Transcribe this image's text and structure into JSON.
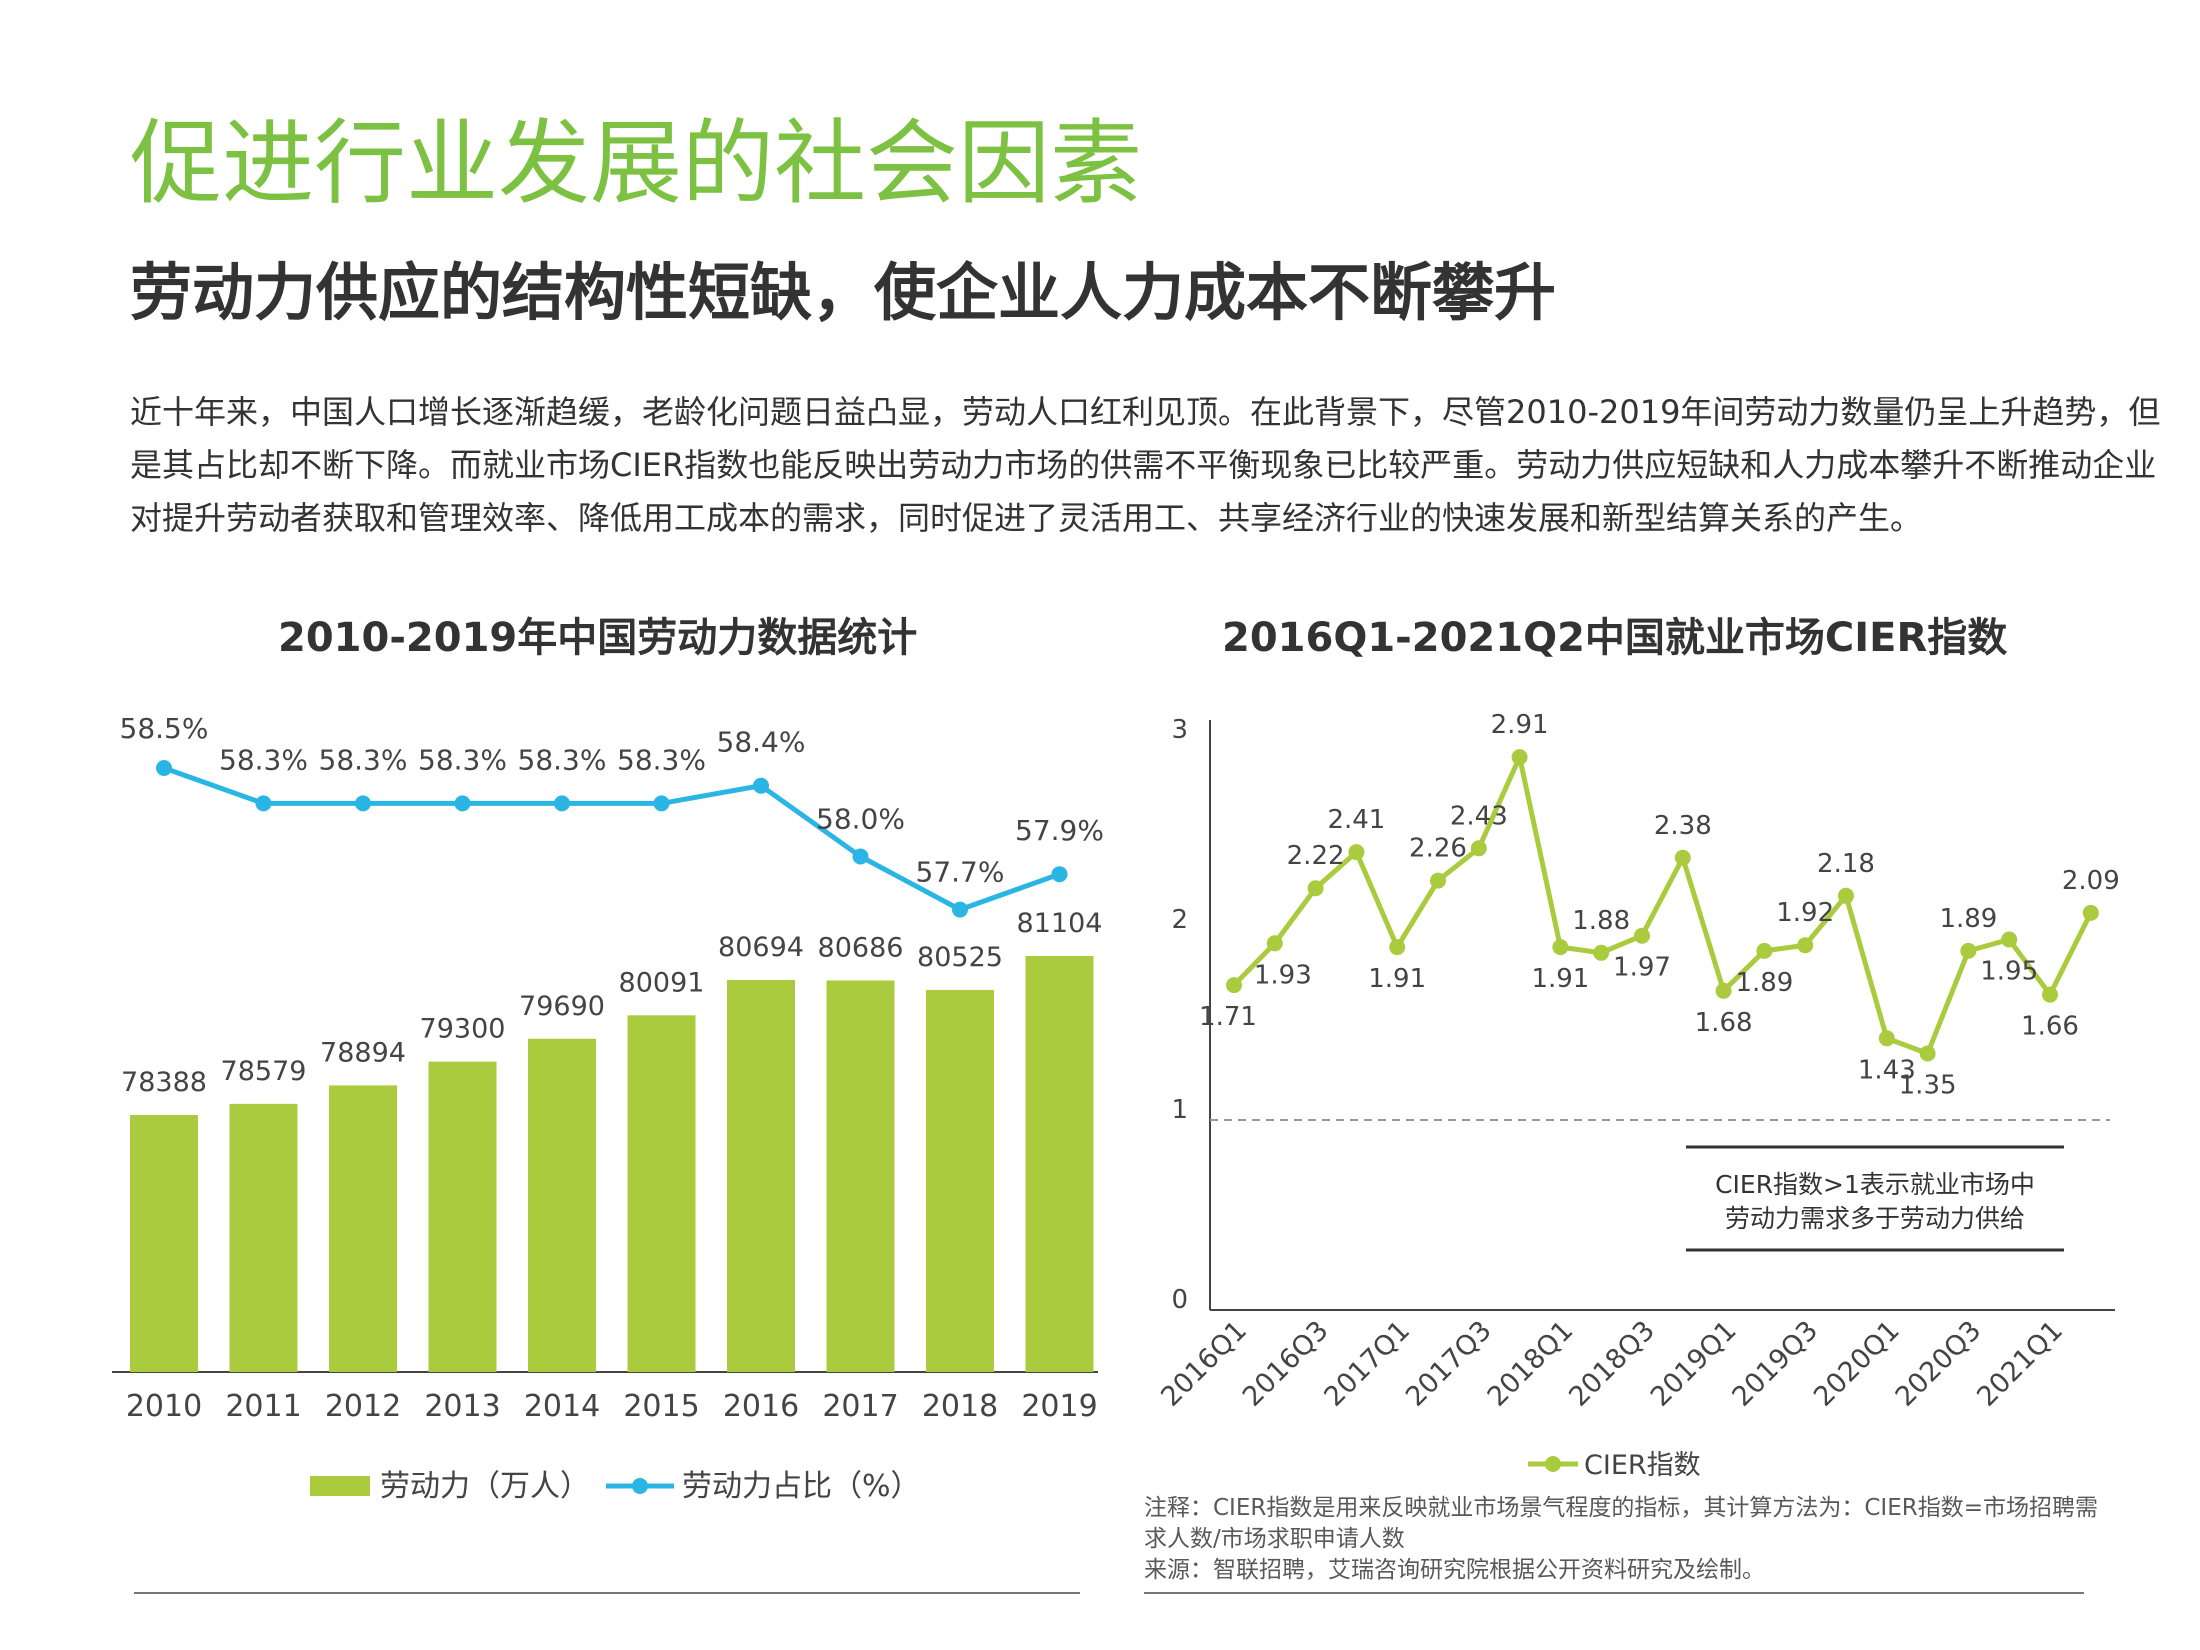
{
  "header": {
    "title": "促进行业发展的社会因素",
    "subtitle": "劳动力供应的结构性短缺，使企业人力成本不断攀升",
    "body": "近十年来，中国人口增长逐渐趋缓，老龄化问题日益凸显，劳动人口红利见顶。在此背景下，尽管2010-2019年间劳动力数量仍呈上升趋势，但是其占比却不断下降。而就业市场CIER指数也能反映出劳动力市场的供需不平衡现象已比较严重。劳动力供应短缺和人力成本攀升不断推动企业对提升劳动者获取和管理效率、降低用工成本的需求，同时促进了灵活用工、共享经济行业的快速发展和新型结算关系的产生。"
  },
  "colors": {
    "title_green": "#7dc143",
    "bar_green": "#a9cb3d",
    "line_blue": "#2bb5e4",
    "cier_green": "#a9cb3d"
  },
  "chart_data": [
    {
      "type": "bar+line",
      "title": "2010-2019年中国劳动力数据统计",
      "categories": [
        "2010",
        "2011",
        "2012",
        "2013",
        "2014",
        "2015",
        "2016",
        "2017",
        "2018",
        "2019"
      ],
      "series": [
        {
          "name": "劳动力（万人）",
          "kind": "bar",
          "values": [
            78388,
            78579,
            78894,
            79300,
            79690,
            80091,
            80694,
            80686,
            80525,
            81104
          ],
          "labels": [
            "78388",
            "78579",
            "78894",
            "79300",
            "79690",
            "80091",
            "80694",
            "80686",
            "80525",
            "81104"
          ]
        },
        {
          "name": "劳动力占比（%）",
          "kind": "line",
          "values": [
            58.5,
            58.3,
            58.3,
            58.3,
            58.3,
            58.3,
            58.4,
            58.0,
            57.7,
            57.9
          ],
          "labels": [
            "58.5%",
            "58.3%",
            "58.3%",
            "58.3%",
            "58.3%",
            "58.3%",
            "58.4%",
            "58.0%",
            "57.7%",
            "57.9%"
          ]
        }
      ],
      "legend": "bottom"
    },
    {
      "type": "line",
      "title": "2016Q1-2021Q2中国就业市场CIER指数",
      "x": [
        "2016Q1",
        "2016Q2",
        "2016Q3",
        "2016Q4",
        "2017Q1",
        "2017Q2",
        "2017Q3",
        "2017Q4",
        "2018Q1",
        "2018Q2",
        "2018Q3",
        "2018Q4",
        "2019Q1",
        "2019Q2",
        "2019Q3",
        "2019Q4",
        "2020Q1",
        "2020Q2",
        "2020Q3",
        "2020Q4",
        "2021Q1",
        "2021Q2"
      ],
      "x_tick_labels": [
        "2016Q1",
        "2016Q3",
        "2017Q1",
        "2017Q3",
        "2018Q1",
        "2018Q3",
        "2019Q1",
        "2019Q3",
        "2020Q1",
        "2020Q3",
        "2021Q1"
      ],
      "series": [
        {
          "name": "CIER指数",
          "values": [
            1.71,
            1.93,
            2.22,
            2.41,
            1.91,
            2.26,
            2.43,
            2.91,
            1.91,
            1.88,
            1.97,
            2.38,
            1.68,
            1.89,
            1.92,
            2.18,
            1.43,
            1.35,
            1.89,
            1.95,
            1.66,
            2.09
          ],
          "labels": [
            "1.71",
            "1.93",
            "2.22",
            "2.41",
            "1.91",
            "2.26",
            "2.43",
            "2.91",
            "1.91",
            "1.88",
            "1.97",
            "2.38",
            "1.68",
            "1.89",
            "1.92",
            "2.18",
            "1.43",
            "1.35",
            "1.89",
            "1.95",
            "1.66",
            "2.09"
          ]
        }
      ],
      "y_ticks": [
        "0",
        "1",
        "2",
        "3"
      ],
      "ylim": [
        0,
        3
      ],
      "reference_line": 1,
      "annotation": "CIER指数>1表示就业市场中劳动力需求多于劳动力供给",
      "legend": "bottom"
    }
  ],
  "notes": {
    "note": "注释：CIER指数是用来反映就业市场景气程度的指标，其计算方法为：CIER指数=市场招聘需求人数/市场求职申请人数",
    "source": "来源：智联招聘，艾瑞咨询研究院根据公开资料研究及绘制。"
  }
}
